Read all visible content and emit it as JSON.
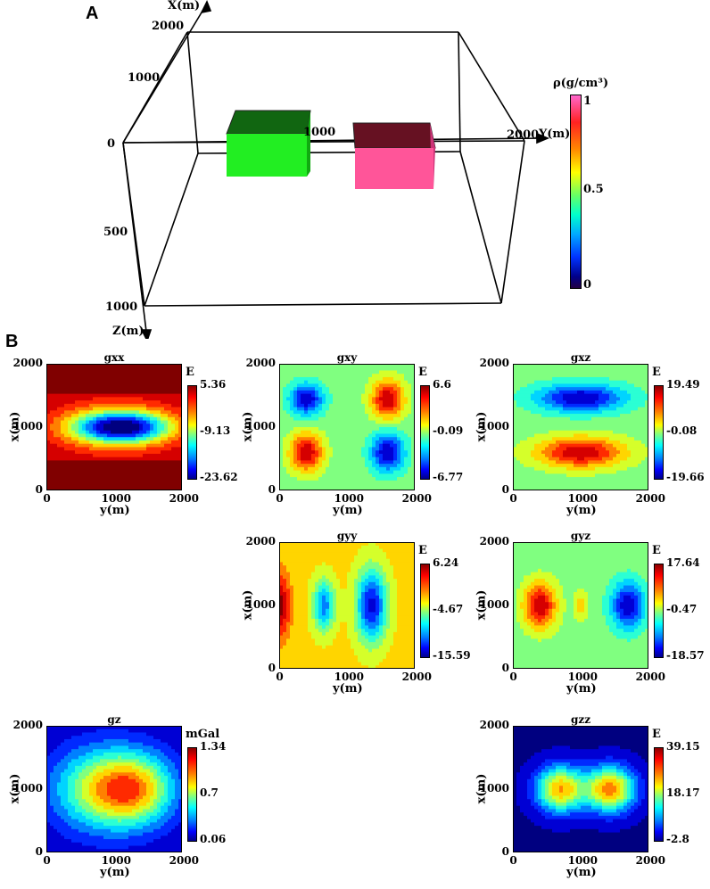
{
  "panelA": {
    "letter": "A",
    "axis_x": "X(m)",
    "axis_y": "Y(m)",
    "axis_z": "Z(m)",
    "ticks": {
      "x2000": "2000",
      "x1000": "1000",
      "zero": "0",
      "y1000": "1000",
      "y2000": "2000",
      "z500": "500",
      "z1000": "1000"
    },
    "colorbar": {
      "title": "ρ(g/cm³)",
      "max": "1",
      "mid": "0.5",
      "min": "0"
    },
    "colors": {
      "block_green": "#22ee22",
      "block_green_top": "#116611",
      "block_pink": "#ff5599",
      "block_pink_top": "#661122",
      "colorbar_top": "#ff66cc"
    }
  },
  "panelB": {
    "letter": "B",
    "xlabel": "y(m)",
    "ylabel": "x(m)",
    "xticks": [
      "0",
      "1000",
      "2000"
    ],
    "yticks": [
      "2000",
      "1000",
      "0"
    ],
    "plots": [
      {
        "id": "gxx",
        "title": "gxx",
        "unit": "E",
        "max": "5.36",
        "mid": "-9.13",
        "min": "-23.62"
      },
      {
        "id": "gxy",
        "title": "gxy",
        "unit": "E",
        "max": "6.6",
        "mid": "-0.09",
        "min": "-6.77"
      },
      {
        "id": "gxz",
        "title": "gxz",
        "unit": "E",
        "max": "19.49",
        "mid": "-0.08",
        "min": "-19.66"
      },
      {
        "id": "gyy",
        "title": "gyy",
        "unit": "E",
        "max": "6.24",
        "mid": "-4.67",
        "min": "-15.59"
      },
      {
        "id": "gyz",
        "title": "gyz",
        "unit": "E",
        "max": "17.64",
        "mid": "-0.47",
        "min": "-18.57"
      },
      {
        "id": "gz",
        "title": "gz",
        "unit": "mGal",
        "max": "1.34",
        "mid": "0.7",
        "min": "0.06"
      },
      {
        "id": "gzz",
        "title": "gzz",
        "unit": "E",
        "max": "39.15",
        "mid": "18.17",
        "min": "-2.8"
      }
    ]
  }
}
